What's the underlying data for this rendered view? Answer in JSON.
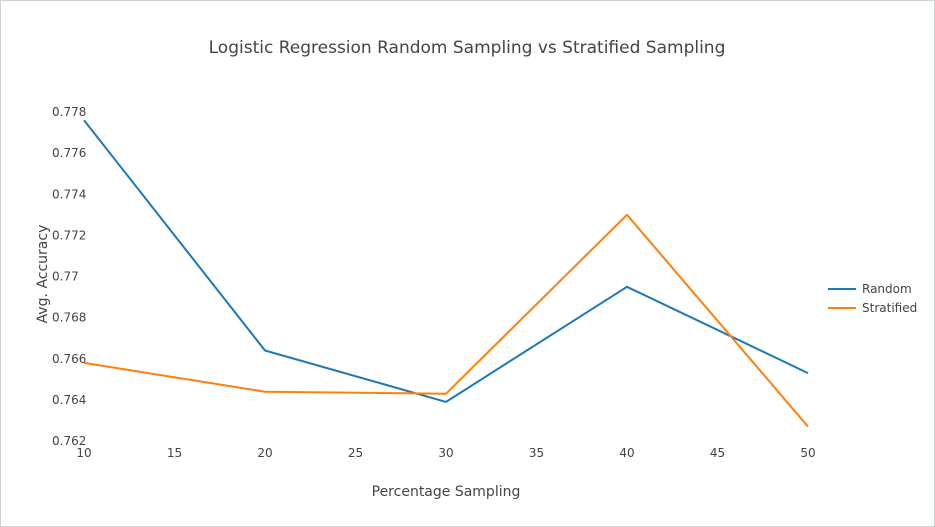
{
  "chart_data": {
    "type": "line",
    "title": "Logistic Regression Random Sampling vs Stratified Sampling",
    "xlabel": "Percentage Sampling",
    "ylabel": "Avg. Accuracy",
    "x": [
      10,
      20,
      30,
      40,
      50
    ],
    "xlim": [
      10,
      50
    ],
    "ylim": [
      0.762,
      0.778
    ],
    "x_ticks": [
      "10",
      "15",
      "20",
      "25",
      "30",
      "35",
      "40",
      "45",
      "50"
    ],
    "x_tick_values": [
      10,
      15,
      20,
      25,
      30,
      35,
      40,
      45,
      50
    ],
    "y_ticks": [
      "0.762",
      "0.764",
      "0.766",
      "0.768",
      "0.77",
      "0.772",
      "0.774",
      "0.776",
      "0.778"
    ],
    "y_tick_values": [
      0.762,
      0.764,
      0.766,
      0.768,
      0.77,
      0.772,
      0.774,
      0.776,
      0.778
    ],
    "grid": false,
    "legend_position": "right",
    "series": [
      {
        "name": "Random",
        "color": "#1f77b4",
        "values": [
          0.7776,
          0.7664,
          0.7639,
          0.7695,
          0.7653
        ]
      },
      {
        "name": "Stratified",
        "color": "#ff7f0e",
        "values": [
          0.7658,
          0.7644,
          0.7643,
          0.773,
          0.7627
        ]
      }
    ]
  }
}
